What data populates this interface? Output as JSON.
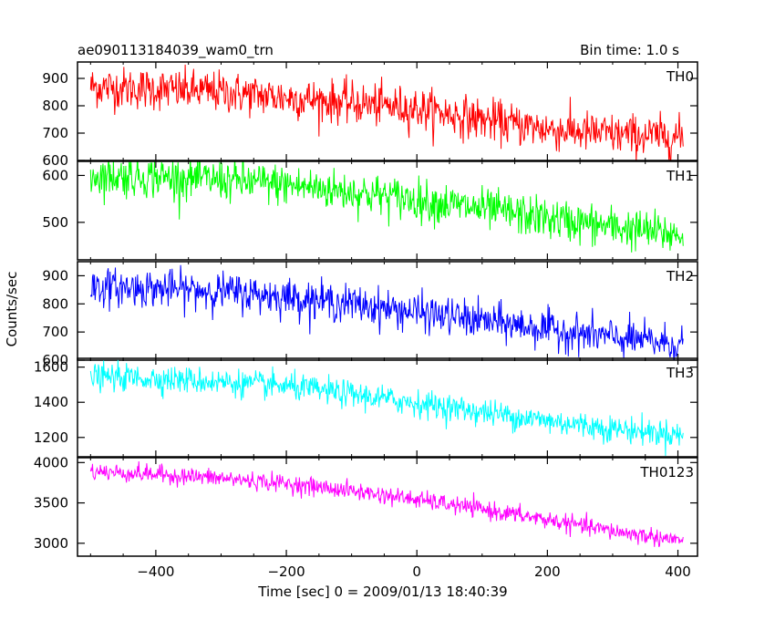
{
  "chart_data": {
    "type": "line",
    "title": "ae090113184039_wam0_trn",
    "subtitle": "Bin time: 1.0 s",
    "xlabel": "Time [sec] 0 = 2009/01/13 18:40:39",
    "ylabel": "Counts/sec",
    "xlim": [
      -520,
      430
    ],
    "x_ticks": [
      -400,
      -200,
      0,
      200,
      400
    ],
    "x_tick_labels": [
      "−400",
      "−200",
      "0",
      "200",
      "400"
    ],
    "x_start": -500,
    "x_end": 408,
    "grid": false,
    "panels": [
      {
        "name": "TH0",
        "color": "#ff0000",
        "ylim": [
          600,
          960
        ],
        "y_ticks": [
          600,
          700,
          800,
          900
        ],
        "trend_x": [
          -500,
          -400,
          -300,
          -200,
          -100,
          0,
          100,
          200,
          300,
          408
        ],
        "trend_y": [
          870,
          860,
          850,
          830,
          810,
          790,
          750,
          715,
          695,
          685
        ],
        "noise": 38
      },
      {
        "name": "TH1",
        "color": "#00ff00",
        "ylim": [
          420,
          630
        ],
        "y_ticks": [
          500,
          600
        ],
        "trend_x": [
          -500,
          -400,
          -300,
          -200,
          -100,
          0,
          100,
          200,
          300,
          408
        ],
        "trend_y": [
          600,
          597,
          590,
          580,
          565,
          548,
          528,
          508,
          490,
          472
        ],
        "noise": 22
      },
      {
        "name": "TH2",
        "color": "#0000ff",
        "ylim": [
          600,
          950
        ],
        "y_ticks": [
          600,
          700,
          800,
          900
        ],
        "trend_x": [
          -500,
          -400,
          -300,
          -200,
          -100,
          0,
          100,
          200,
          300,
          408
        ],
        "trend_y": [
          860,
          855,
          845,
          825,
          800,
          770,
          740,
          710,
          680,
          655
        ],
        "noise": 33
      },
      {
        "name": "TH3",
        "color": "#00ffff",
        "ylim": [
          1090,
          1650
        ],
        "y_ticks": [
          1200,
          1400,
          1600
        ],
        "trend_x": [
          -500,
          -400,
          -300,
          -200,
          -100,
          0,
          100,
          200,
          300,
          408
        ],
        "trend_y": [
          1545,
          1535,
          1515,
          1490,
          1445,
          1395,
          1345,
          1295,
          1250,
          1215
        ],
        "noise": 38
      },
      {
        "name": "TH0123",
        "color": "#ff00ff",
        "ylim": [
          2840,
          4060
        ],
        "y_ticks": [
          3000,
          3500,
          4000
        ],
        "trend_x": [
          -500,
          -400,
          -300,
          -200,
          -100,
          0,
          100,
          200,
          300,
          408
        ],
        "trend_y": [
          3890,
          3855,
          3805,
          3740,
          3650,
          3540,
          3420,
          3290,
          3150,
          3030
        ],
        "noise": 55
      }
    ]
  }
}
